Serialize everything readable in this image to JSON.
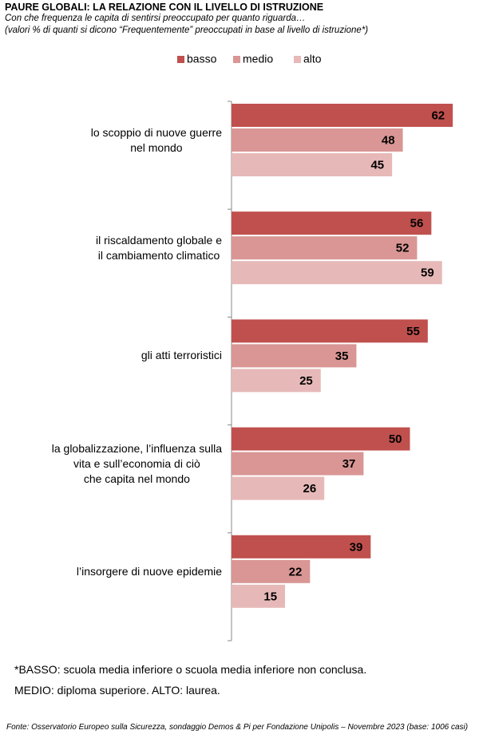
{
  "chart_data": {
    "type": "bar",
    "orientation": "horizontal",
    "title": "PAURE GLOBALI: LA RELAZIONE CON IL LIVELLO DI ISTRUZIONE",
    "subtitle": [
      "Con che frequenza le capita di sentirsi preoccupato per quanto riguarda…",
      "(valori % di quanti si dicono “Frequentemente” preoccupati in base al livello di istruzione*)"
    ],
    "categories": [
      "lo scoppio di nuove guerre\nnel mondo",
      "il riscaldamento globale e\nil cambiamento climatico",
      "gli atti terroristici",
      "la globalizzazione, l’influenza sulla\nvita e sull’economia di ciò\nche capita nel mondo",
      "l’insorgere di nuove epidemie"
    ],
    "series": [
      {
        "name": "basso",
        "color": "#c0504d",
        "values": [
          62,
          56,
          55,
          50,
          39
        ]
      },
      {
        "name": "medio",
        "color": "#d99694",
        "values": [
          48,
          52,
          35,
          37,
          22
        ]
      },
      {
        "name": "alto",
        "color": "#e6b9b8",
        "values": [
          45,
          59,
          25,
          26,
          15
        ]
      }
    ],
    "legend": "top",
    "notes": [
      "*BASSO: scuola media inferiore o scuola media inferiore non conclusa.",
      "MEDIO: diploma superiore. ALTO: laurea."
    ],
    "source": "Fonte: Osservatorio Europeo sulla Sicurezza, sondaggio Demos & Pi per Fondazione Unipolis – Novembre 2023 (base: 1006 casi)"
  }
}
